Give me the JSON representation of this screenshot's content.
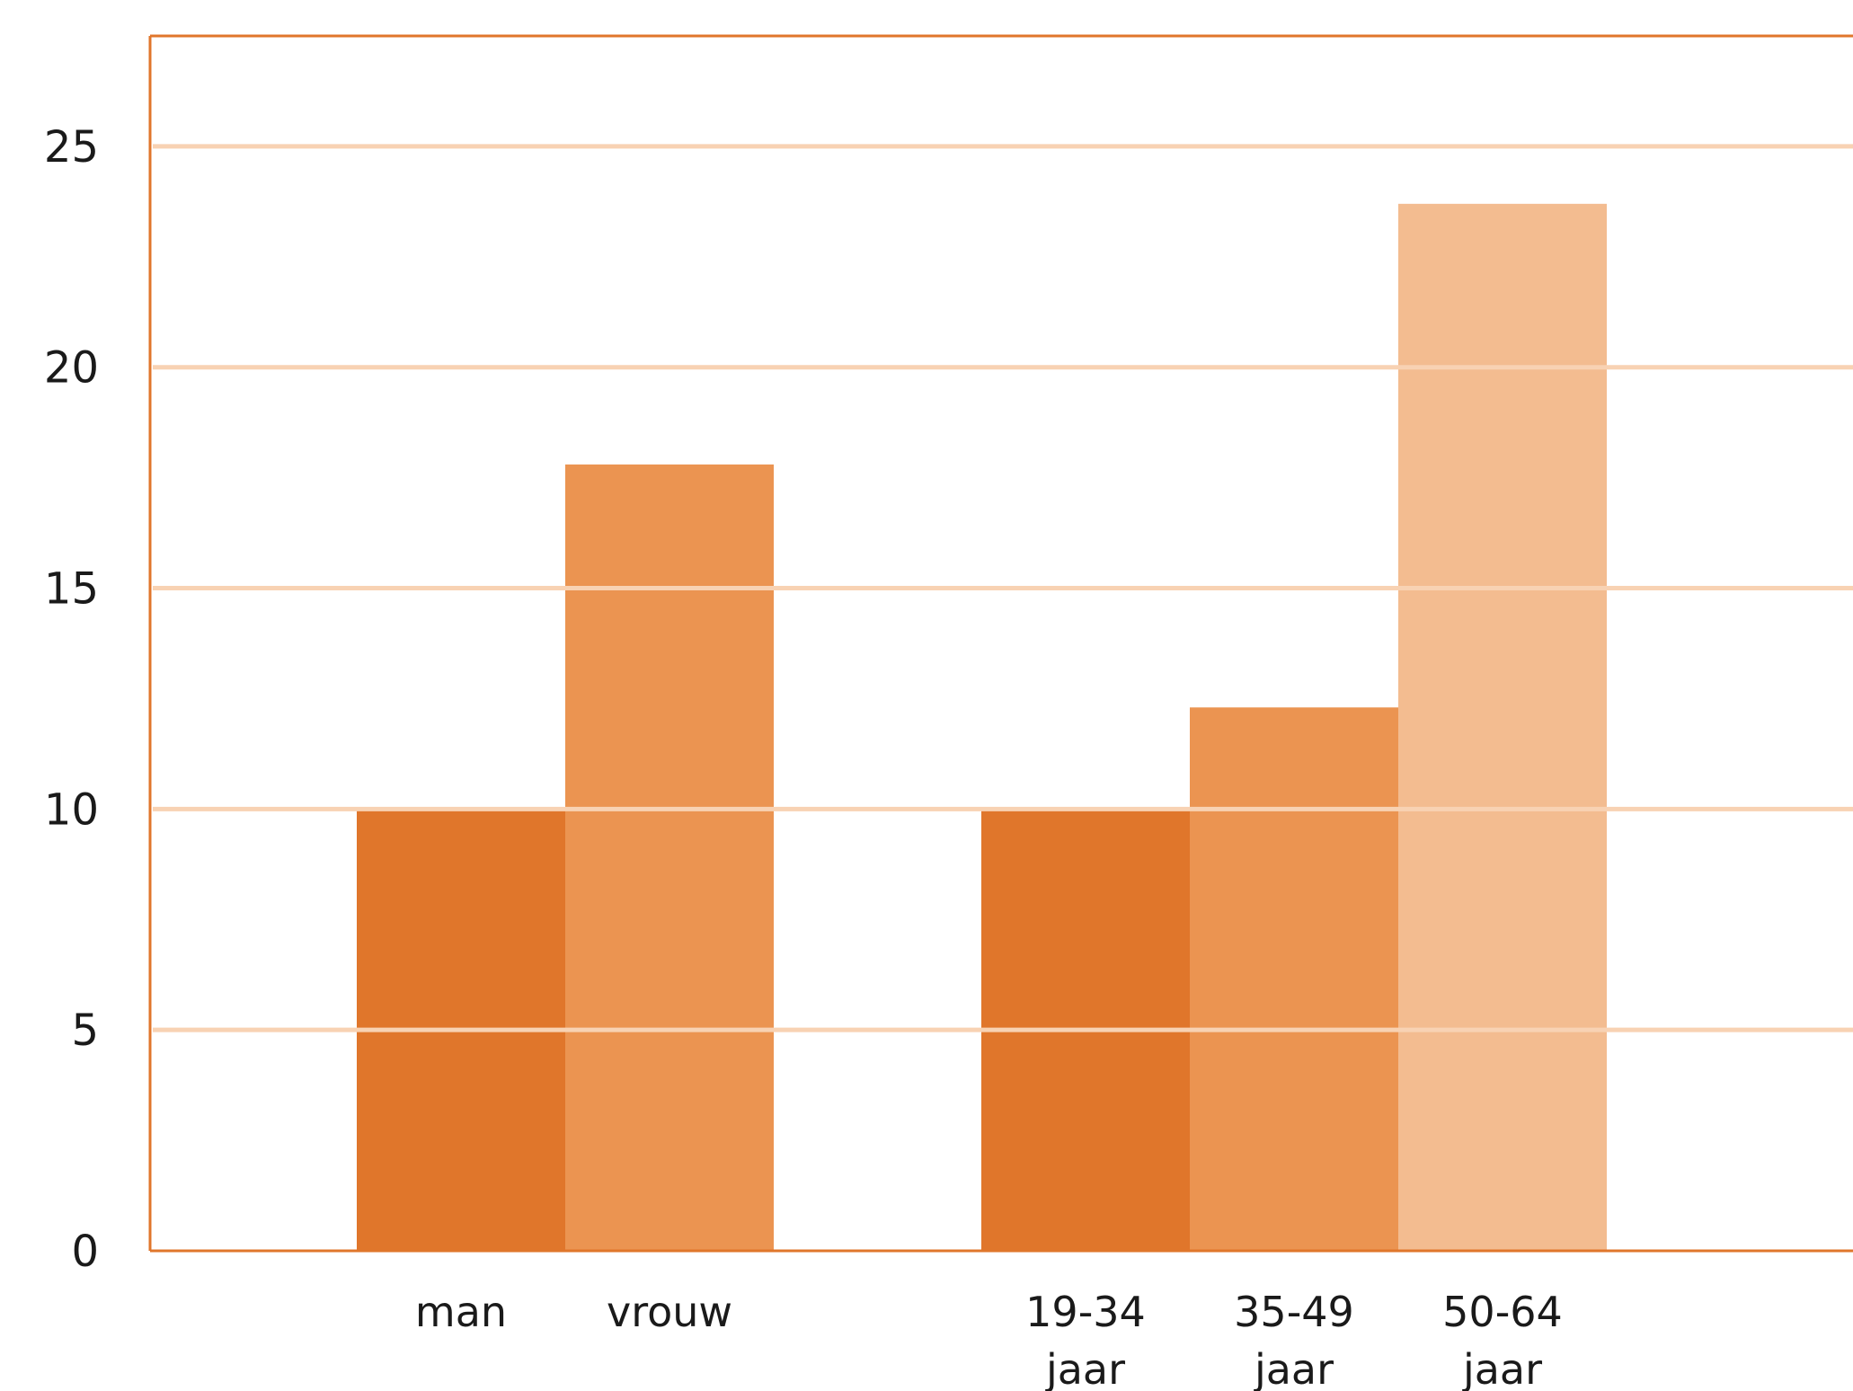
{
  "chart_data": {
    "type": "bar",
    "title": "",
    "xlabel": "",
    "ylabel": "",
    "ylim": [
      0,
      27.5
    ],
    "yticks": [
      0,
      5,
      10,
      15,
      20,
      25
    ],
    "grid": true,
    "groups": [
      {
        "bars": [
          {
            "label": [
              "man"
            ],
            "value": 10,
            "color": "#e0762b"
          },
          {
            "label": [
              "vrouw"
            ],
            "value": 17.8,
            "color": "#eb9451"
          }
        ]
      },
      {
        "bars": [
          {
            "label": [
              "19-34",
              "jaar"
            ],
            "value": 10,
            "color": "#e0762b"
          },
          {
            "label": [
              "35-49",
              "jaar"
            ],
            "value": 12.3,
            "color": "#eb9451"
          },
          {
            "label": [
              "50-64",
              "jaar"
            ],
            "value": 23.7,
            "color": "#f3bc90"
          }
        ]
      }
    ],
    "colors": {
      "axis": "#e0762b",
      "grid": "#f8d2b3"
    }
  }
}
